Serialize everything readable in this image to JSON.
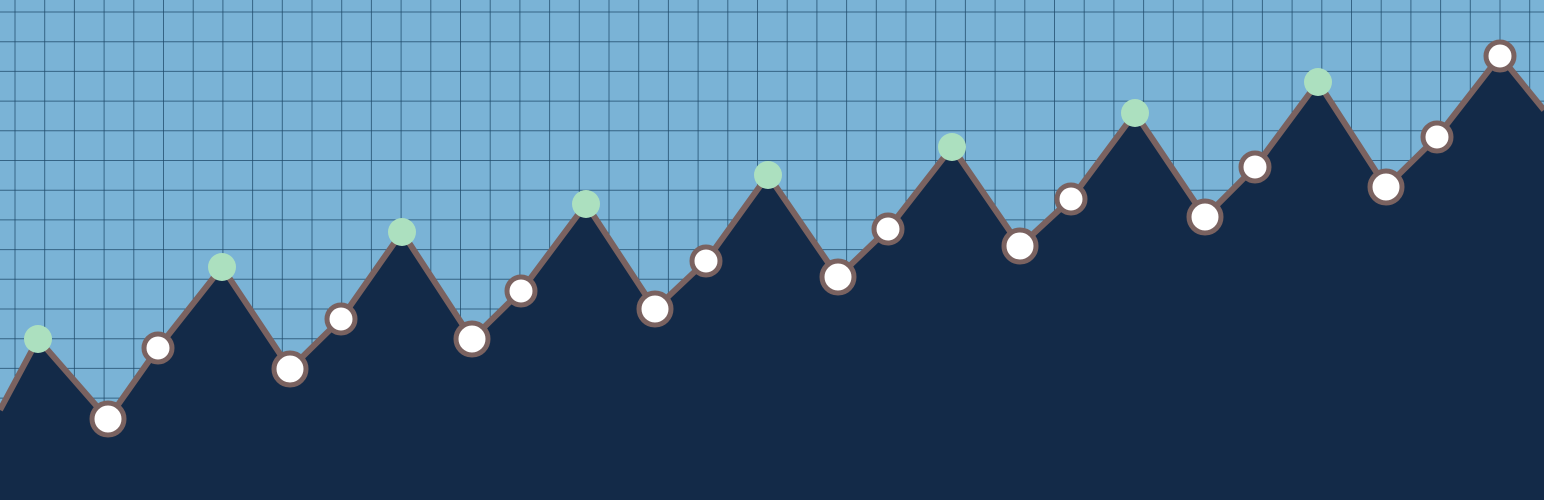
{
  "scene": {
    "description_free": true,
    "icon": "rising-line-graph-illustration",
    "colors": {
      "sky": "#7ab3d6",
      "grid_line": "#1f4a6a",
      "area_fill": "#132a48",
      "line": "#7a6260",
      "point_fill": "#ffffff",
      "peak_fill": "#ace0bf"
    }
  },
  "chart_data": {
    "type": "area",
    "x": [
      0,
      1,
      2,
      3,
      4,
      5,
      6,
      7,
      8,
      9,
      10,
      11,
      12,
      13,
      14,
      15,
      16,
      17,
      18,
      19,
      20,
      21,
      22,
      23,
      24,
      25
    ],
    "y": [
      120,
      161,
      81,
      152,
      233,
      131,
      181,
      268,
      161,
      209,
      296,
      191,
      239,
      325,
      223,
      271,
      353,
      254,
      301,
      387,
      283,
      333,
      418,
      313,
      363,
      444
    ],
    "peaks": [
      1,
      4,
      7,
      10,
      13,
      16,
      19,
      22
    ],
    "ylim": [
      0,
      500
    ]
  }
}
